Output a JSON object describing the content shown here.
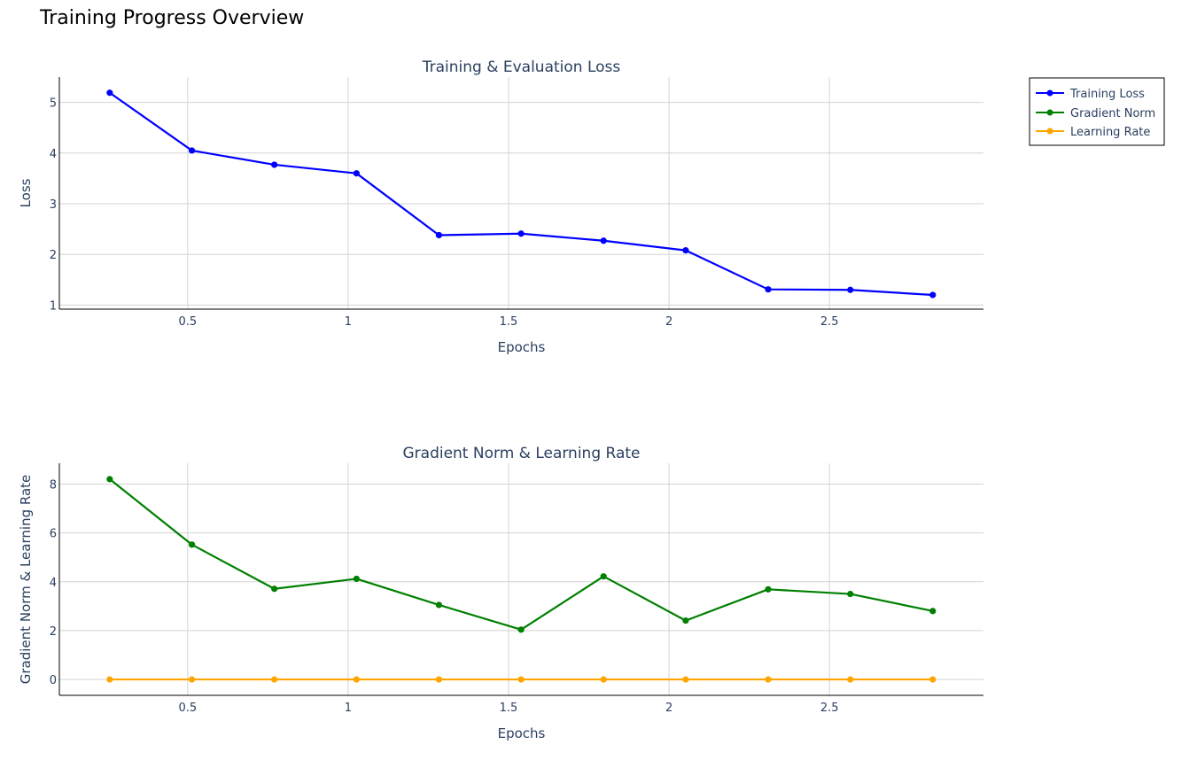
{
  "page": {
    "title": "Training Progress Overview"
  },
  "chart_data": [
    {
      "type": "line",
      "title": "Training & Evaluation Loss",
      "xlabel": "Epochs",
      "ylabel": "Loss",
      "xlim": [
        0.1,
        2.98
      ],
      "ylim": [
        0.92,
        5.5
      ],
      "xticks": [
        0.5,
        1,
        1.5,
        2,
        2.5
      ],
      "xtick_labels": [
        "0.5",
        "1",
        "1.5",
        "2",
        "2.5"
      ],
      "yticks": [
        1,
        2,
        3,
        4,
        5
      ],
      "ytick_labels": [
        "1",
        "2",
        "3",
        "4",
        "5"
      ],
      "grid": true,
      "x": [
        0.257,
        0.513,
        0.77,
        1.026,
        1.283,
        1.539,
        1.796,
        2.052,
        2.309,
        2.565,
        2.822
      ],
      "series": [
        {
          "name": "Training Loss",
          "color": "#0000ff",
          "values": [
            5.19,
            4.05,
            3.77,
            3.6,
            2.38,
            2.41,
            2.27,
            2.08,
            1.31,
            1.3,
            1.2
          ]
        }
      ]
    },
    {
      "type": "line",
      "title": "Gradient Norm & Learning Rate",
      "xlabel": "Epochs",
      "ylabel": "Gradient Norm & Learning Rate",
      "xlim": [
        0.1,
        2.98
      ],
      "ylim": [
        -0.65,
        8.85
      ],
      "xticks": [
        0.5,
        1,
        1.5,
        2,
        2.5
      ],
      "xtick_labels": [
        "0.5",
        "1",
        "1.5",
        "2",
        "2.5"
      ],
      "yticks": [
        0,
        2,
        4,
        6,
        8
      ],
      "ytick_labels": [
        "0",
        "2",
        "4",
        "6",
        "8"
      ],
      "grid": true,
      "x": [
        0.257,
        0.513,
        0.77,
        1.026,
        1.283,
        1.539,
        1.796,
        2.052,
        2.309,
        2.565,
        2.822
      ],
      "series": [
        {
          "name": "Gradient Norm",
          "color": "#008000",
          "values": [
            8.2,
            5.52,
            3.71,
            4.12,
            3.05,
            2.04,
            4.22,
            2.41,
            3.69,
            3.5,
            2.8
          ]
        },
        {
          "name": "Learning Rate",
          "color": "#ffa500",
          "values": [
            2e-05,
            1.8e-05,
            1.6e-05,
            1.4e-05,
            1.2e-05,
            1e-05,
            8e-06,
            6e-06,
            4e-06,
            2e-06,
            5e-07
          ]
        }
      ]
    }
  ],
  "legend": {
    "position": "top-right",
    "items": [
      {
        "label": "Training Loss",
        "color": "#0000ff"
      },
      {
        "label": "Gradient Norm",
        "color": "#008000"
      },
      {
        "label": "Learning Rate",
        "color": "#ffa500"
      }
    ]
  }
}
